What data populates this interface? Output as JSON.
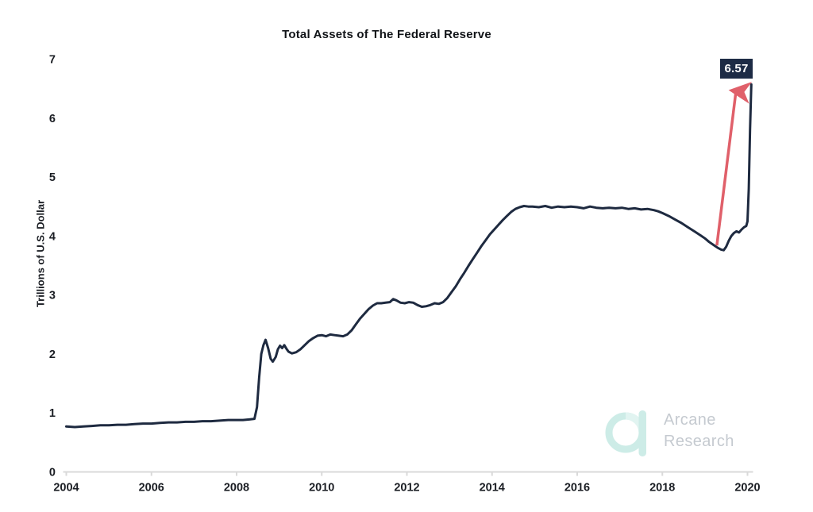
{
  "chart": {
    "title": "Total Assets of The Federal Reserve",
    "ylabel": "Trillions of U.S. Dollar"
  },
  "branding": {
    "line1": "Arcane",
    "line2": "Research"
  },
  "colors": {
    "line": "#1e2a40",
    "arrow": "#e0606a",
    "annotation_bg": "#1d2b45",
    "annotation_text": "#ffffff",
    "axis": "#d9d9d9",
    "tick_text": "#1a1d23",
    "logo_mint": "#cdece7",
    "logo_mint_light": "#e1f4f1",
    "brand_text": "#c5cad0"
  },
  "chart_data": {
    "type": "line",
    "title": "Total Assets of The Federal Reserve",
    "xlabel": "",
    "ylabel": "Trillions of U.S. Dollar",
    "xlim": [
      2004,
      2020
    ],
    "ylim": [
      0,
      7
    ],
    "grid": false,
    "legend": "none",
    "x_ticks": [
      2004,
      2006,
      2008,
      2010,
      2012,
      2014,
      2016,
      2018,
      2020
    ],
    "y_ticks": [
      0,
      1,
      2,
      3,
      4,
      5,
      6,
      7
    ],
    "annotation": {
      "text": "6.57",
      "value": 6.57,
      "arrow_from": {
        "x": 2019.28,
        "y": 3.84
      },
      "arrow_to": {
        "x": 2019.73,
        "y": 6.46
      }
    },
    "series": [
      {
        "name": "Federal Reserve total assets",
        "x": [
          2004.0,
          2004.2,
          2004.4,
          2004.6,
          2004.8,
          2005.0,
          2005.2,
          2005.4,
          2005.6,
          2005.8,
          2006.0,
          2006.2,
          2006.4,
          2006.6,
          2006.8,
          2007.0,
          2007.2,
          2007.4,
          2007.6,
          2007.8,
          2008.0,
          2008.15,
          2008.3,
          2008.42,
          2008.48,
          2008.53,
          2008.58,
          2008.63,
          2008.68,
          2008.74,
          2008.8,
          2008.85,
          2008.92,
          2008.97,
          2009.02,
          2009.07,
          2009.12,
          2009.17,
          2009.22,
          2009.3,
          2009.4,
          2009.5,
          2009.6,
          2009.7,
          2009.8,
          2009.9,
          2010.0,
          2010.1,
          2010.2,
          2010.3,
          2010.4,
          2010.5,
          2010.6,
          2010.7,
          2010.8,
          2010.9,
          2011.0,
          2011.1,
          2011.2,
          2011.3,
          2011.4,
          2011.5,
          2011.6,
          2011.68,
          2011.75,
          2011.85,
          2011.95,
          2012.05,
          2012.15,
          2012.25,
          2012.35,
          2012.45,
          2012.55,
          2012.65,
          2012.75,
          2012.85,
          2012.95,
          2013.05,
          2013.15,
          2013.25,
          2013.35,
          2013.45,
          2013.55,
          2013.65,
          2013.75,
          2013.85,
          2013.95,
          2014.05,
          2014.15,
          2014.25,
          2014.35,
          2014.45,
          2014.55,
          2014.65,
          2014.75,
          2014.85,
          2014.95,
          2015.1,
          2015.25,
          2015.4,
          2015.55,
          2015.7,
          2015.85,
          2016.0,
          2016.15,
          2016.3,
          2016.45,
          2016.6,
          2016.75,
          2016.9,
          2017.05,
          2017.2,
          2017.35,
          2017.5,
          2017.65,
          2017.8,
          2017.9,
          2018.0,
          2018.15,
          2018.3,
          2018.45,
          2018.6,
          2018.75,
          2018.9,
          2019.0,
          2019.1,
          2019.2,
          2019.3,
          2019.38,
          2019.44,
          2019.5,
          2019.56,
          2019.62,
          2019.68,
          2019.74,
          2019.8,
          2019.86,
          2019.92,
          2019.97,
          2020.0,
          2020.03,
          2020.06,
          2020.09
        ],
        "y": [
          0.77,
          0.76,
          0.77,
          0.78,
          0.79,
          0.79,
          0.8,
          0.8,
          0.81,
          0.82,
          0.82,
          0.83,
          0.84,
          0.84,
          0.85,
          0.85,
          0.86,
          0.86,
          0.87,
          0.88,
          0.88,
          0.88,
          0.89,
          0.9,
          1.1,
          1.6,
          2.0,
          2.15,
          2.24,
          2.1,
          1.92,
          1.87,
          1.95,
          2.08,
          2.14,
          2.1,
          2.15,
          2.09,
          2.04,
          2.01,
          2.03,
          2.08,
          2.15,
          2.22,
          2.27,
          2.31,
          2.32,
          2.3,
          2.33,
          2.32,
          2.31,
          2.3,
          2.33,
          2.4,
          2.5,
          2.6,
          2.68,
          2.76,
          2.82,
          2.86,
          2.86,
          2.87,
          2.88,
          2.93,
          2.91,
          2.87,
          2.86,
          2.88,
          2.87,
          2.83,
          2.8,
          2.81,
          2.83,
          2.86,
          2.85,
          2.88,
          2.95,
          3.05,
          3.15,
          3.27,
          3.38,
          3.5,
          3.61,
          3.72,
          3.83,
          3.93,
          4.03,
          4.11,
          4.19,
          4.27,
          4.34,
          4.41,
          4.46,
          4.49,
          4.51,
          4.5,
          4.5,
          4.49,
          4.51,
          4.48,
          4.5,
          4.49,
          4.5,
          4.49,
          4.47,
          4.5,
          4.48,
          4.47,
          4.48,
          4.47,
          4.48,
          4.46,
          4.47,
          4.45,
          4.46,
          4.44,
          4.42,
          4.39,
          4.34,
          4.28,
          4.22,
          4.15,
          4.08,
          4.01,
          3.96,
          3.9,
          3.85,
          3.8,
          3.77,
          3.76,
          3.82,
          3.92,
          4.0,
          4.05,
          4.08,
          4.06,
          4.11,
          4.15,
          4.17,
          4.25,
          4.8,
          5.8,
          6.57
        ]
      }
    ]
  }
}
